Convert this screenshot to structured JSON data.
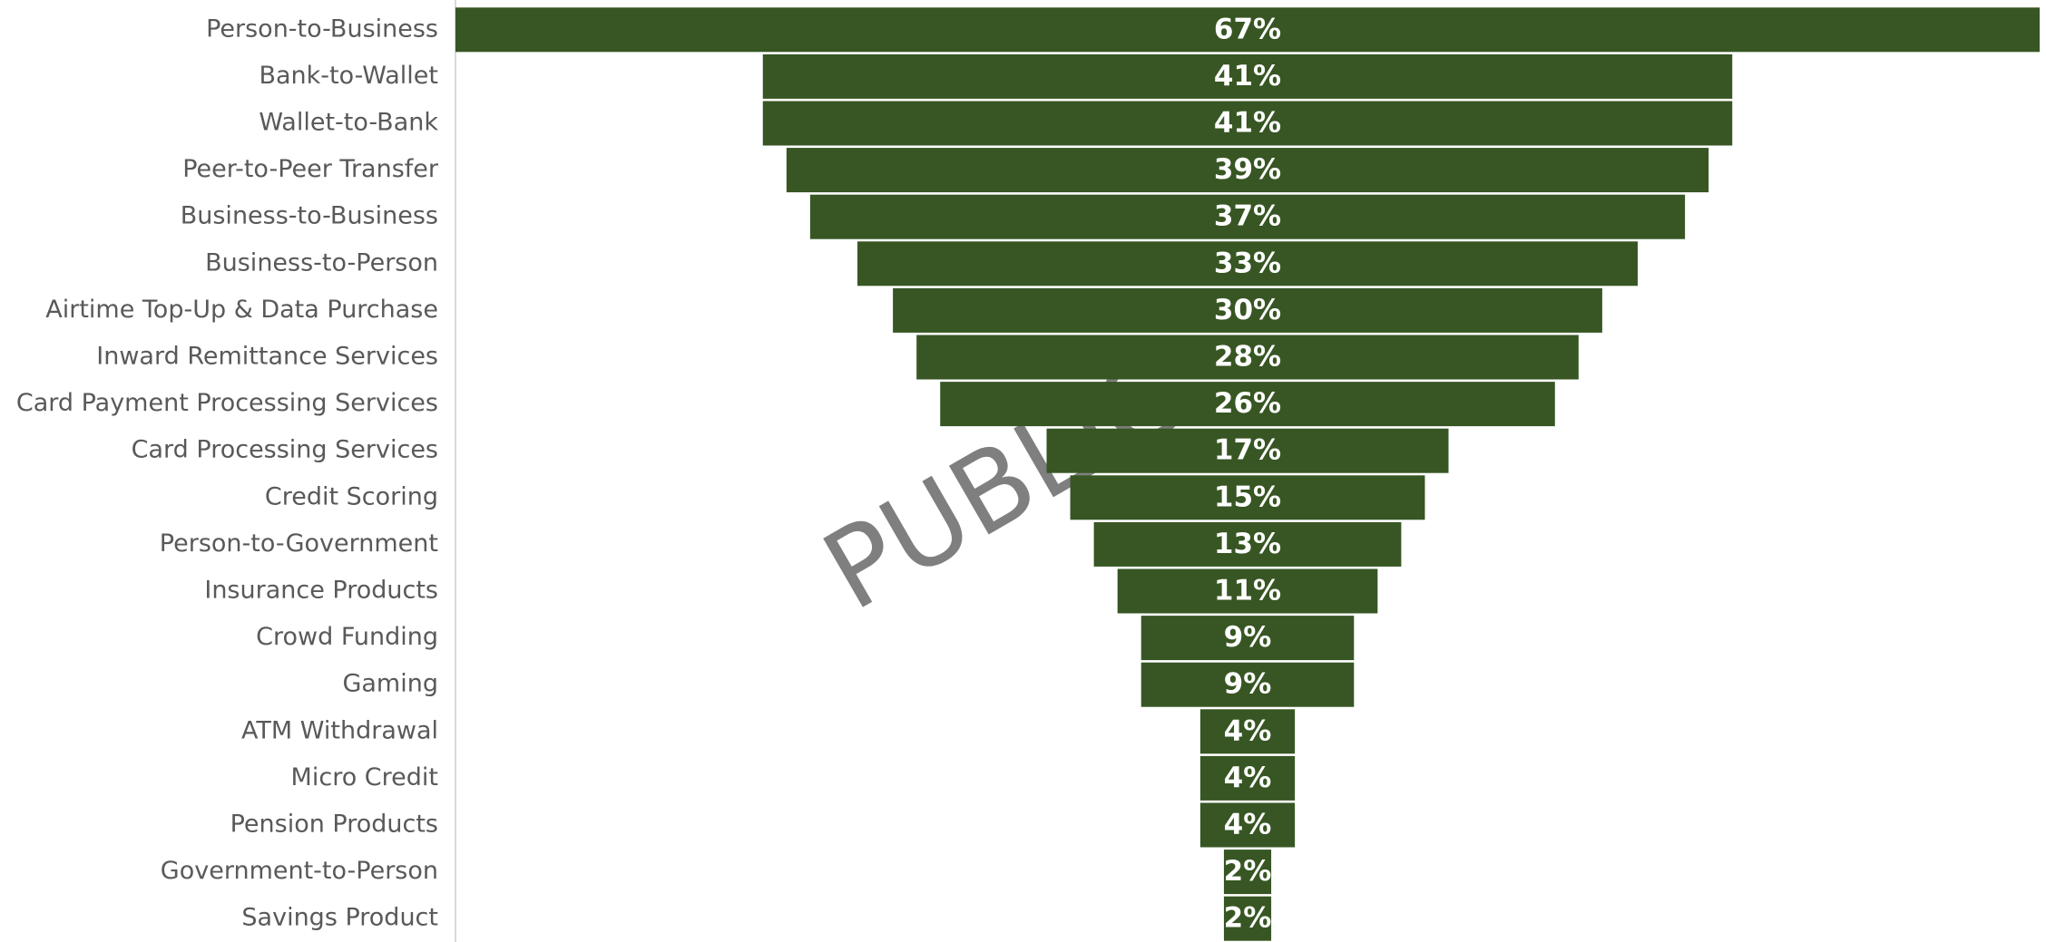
{
  "chart_data": {
    "type": "funnel",
    "categories": [
      "Person-to-Business",
      "Bank-to-Wallet",
      "Wallet-to-Bank",
      "Peer-to-Peer Transfer",
      "Business-to-Business",
      "Business-to-Person",
      "Airtime Top-Up & Data Purchase",
      "Inward Remittance Services",
      "Card Payment Processing Services",
      "Card Processing Services",
      "Credit Scoring",
      "Person-to-Government",
      "Insurance Products",
      "Crowd Funding",
      "Gaming",
      "ATM Withdrawal",
      "Micro Credit",
      "Pension Products",
      "Government-to-Person",
      "Savings Product"
    ],
    "values": [
      67,
      41,
      41,
      39,
      37,
      33,
      30,
      28,
      26,
      17,
      15,
      13,
      11,
      9,
      9,
      4,
      4,
      4,
      2,
      2
    ],
    "value_labels": [
      "67%",
      "41%",
      "41%",
      "39%",
      "37%",
      "33%",
      "30%",
      "28%",
      "26%",
      "17%",
      "15%",
      "13%",
      "11%",
      "9%",
      "9%",
      "4%",
      "4%",
      "4%",
      "2%",
      "2%"
    ],
    "color": "#375623",
    "watermark": "PUBLIC"
  }
}
